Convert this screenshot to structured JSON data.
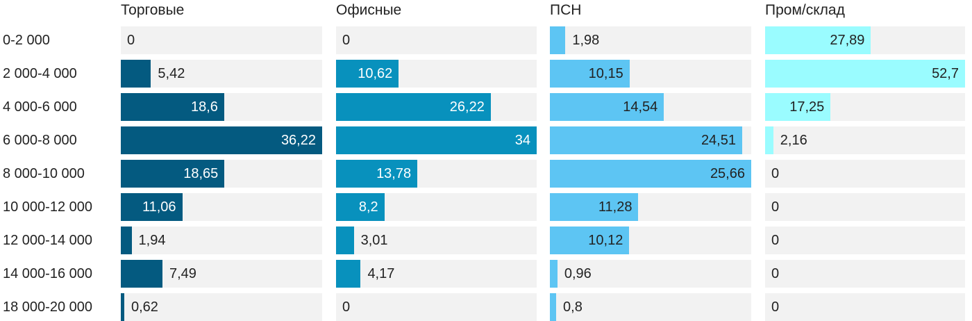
{
  "chart_data": {
    "type": "bar",
    "orientation": "horizontal",
    "layout": "small-multiples",
    "categories": [
      "0-2 000",
      "2 000-4 000",
      "4 000-6 000",
      "6 000-8 000",
      "8 000-10 000",
      "10 000-12 000",
      "12 000-14 000",
      "14 000-16 000",
      "18 000-20 000"
    ],
    "series": [
      {
        "name": "Торговые",
        "color": "#045a80",
        "label_color_inside": "#ffffff",
        "values": [
          0,
          5.42,
          18.6,
          36.22,
          18.65,
          11.06,
          1.94,
          7.49,
          0.62
        ]
      },
      {
        "name": "Офисные",
        "color": "#0891bd",
        "label_color_inside": "#ffffff",
        "values": [
          0,
          10.62,
          26.22,
          34,
          13.78,
          8.2,
          3.01,
          4.17,
          0
        ]
      },
      {
        "name": "ПСН",
        "color": "#5dc5f3",
        "label_color_inside": "#222222",
        "values": [
          1.98,
          10.15,
          14.54,
          24.51,
          25.66,
          11.28,
          10.12,
          0.96,
          0.8
        ]
      },
      {
        "name": "Пром/склад",
        "color": "#9afcff",
        "label_color_inside": "#222222",
        "values": [
          27.89,
          52.7,
          17.25,
          2.16,
          0,
          0,
          0,
          0,
          0
        ]
      }
    ],
    "decimal_separator": ",",
    "grid": false,
    "legend": "none",
    "background_track_color": "#f2f2f2"
  }
}
